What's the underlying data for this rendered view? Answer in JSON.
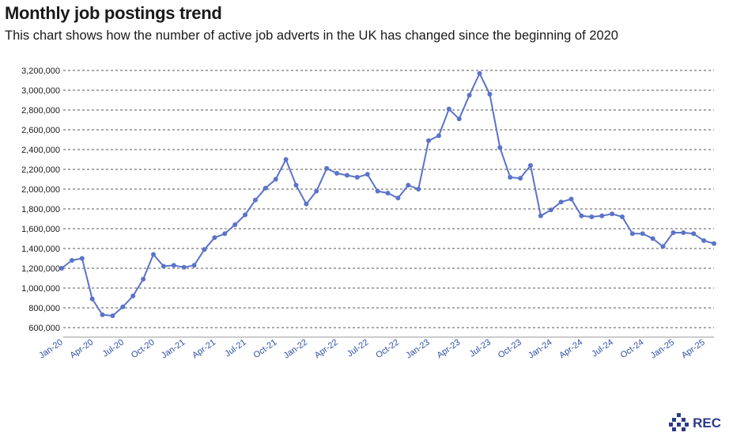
{
  "header": {
    "title": "Monthly job postings trend",
    "subtitle": "This chart shows how the number of active job adverts in the UK has changed since the beginning of 2020"
  },
  "brand": {
    "name": "REC",
    "icon": "rec-logo-icon"
  },
  "colors": {
    "line": "#5b73c9",
    "grid": "#555555",
    "text": "#1a1a1a",
    "xtick": "#2f4fa8",
    "brand": "#2b3a8c"
  },
  "chart_data": {
    "type": "line",
    "title": "Monthly job postings trend",
    "xlabel": "",
    "ylabel": "",
    "ylim": [
      600000,
      3200000
    ],
    "y_ticks": [
      "3,200,000",
      "3,000,000",
      "2,800,000",
      "2,600,000",
      "2,400,000",
      "2,200,000",
      "2,000,000",
      "1,800,000",
      "1,600,000",
      "1,400,000",
      "1,200,000",
      "1,000,000",
      "800,000",
      "600,000"
    ],
    "y_tick_values": [
      3200000,
      3000000,
      2800000,
      2600000,
      2400000,
      2200000,
      2000000,
      1800000,
      1600000,
      1400000,
      1200000,
      1000000,
      800000,
      600000
    ],
    "grid": "horizontal dashed",
    "x_ticks": [
      "Jan-20",
      "Apr-20",
      "Jul-20",
      "Oct-20",
      "Jan-21",
      "Apr-21",
      "Jul-21",
      "Oct-21",
      "Jan-22",
      "Apr-22",
      "Jul-22",
      "Oct-22",
      "Jan-23",
      "Apr-23",
      "Jul-23",
      "Oct-23",
      "Jan-24",
      "Apr-24",
      "Jul-24",
      "Oct-24",
      "Jan-25",
      "Apr-25"
    ],
    "x_start": "2020-01",
    "series": [
      {
        "values": [
          1200000,
          1280000,
          1300000,
          890000,
          730000,
          720000,
          810000,
          920000,
          1090000,
          1340000,
          1220000,
          1230000,
          1210000,
          1230000,
          1390000,
          1510000,
          1550000,
          1640000,
          1740000,
          1890000,
          2010000,
          2100000,
          2300000,
          2040000,
          1850000,
          1980000,
          2210000,
          2160000,
          2140000,
          2120000,
          2150000,
          1980000,
          1960000,
          1910000,
          2040000,
          2000000,
          2490000,
          2540000,
          2810000,
          2710000,
          2950000,
          3170000,
          2960000,
          2420000,
          2120000,
          2110000,
          2240000,
          1730000,
          1790000,
          1870000,
          1900000,
          1730000,
          1720000,
          1730000,
          1750000,
          1720000,
          1550000,
          1550000,
          1500000,
          1420000,
          1560000,
          1560000,
          1550000,
          1480000,
          1450000
        ]
      }
    ]
  }
}
